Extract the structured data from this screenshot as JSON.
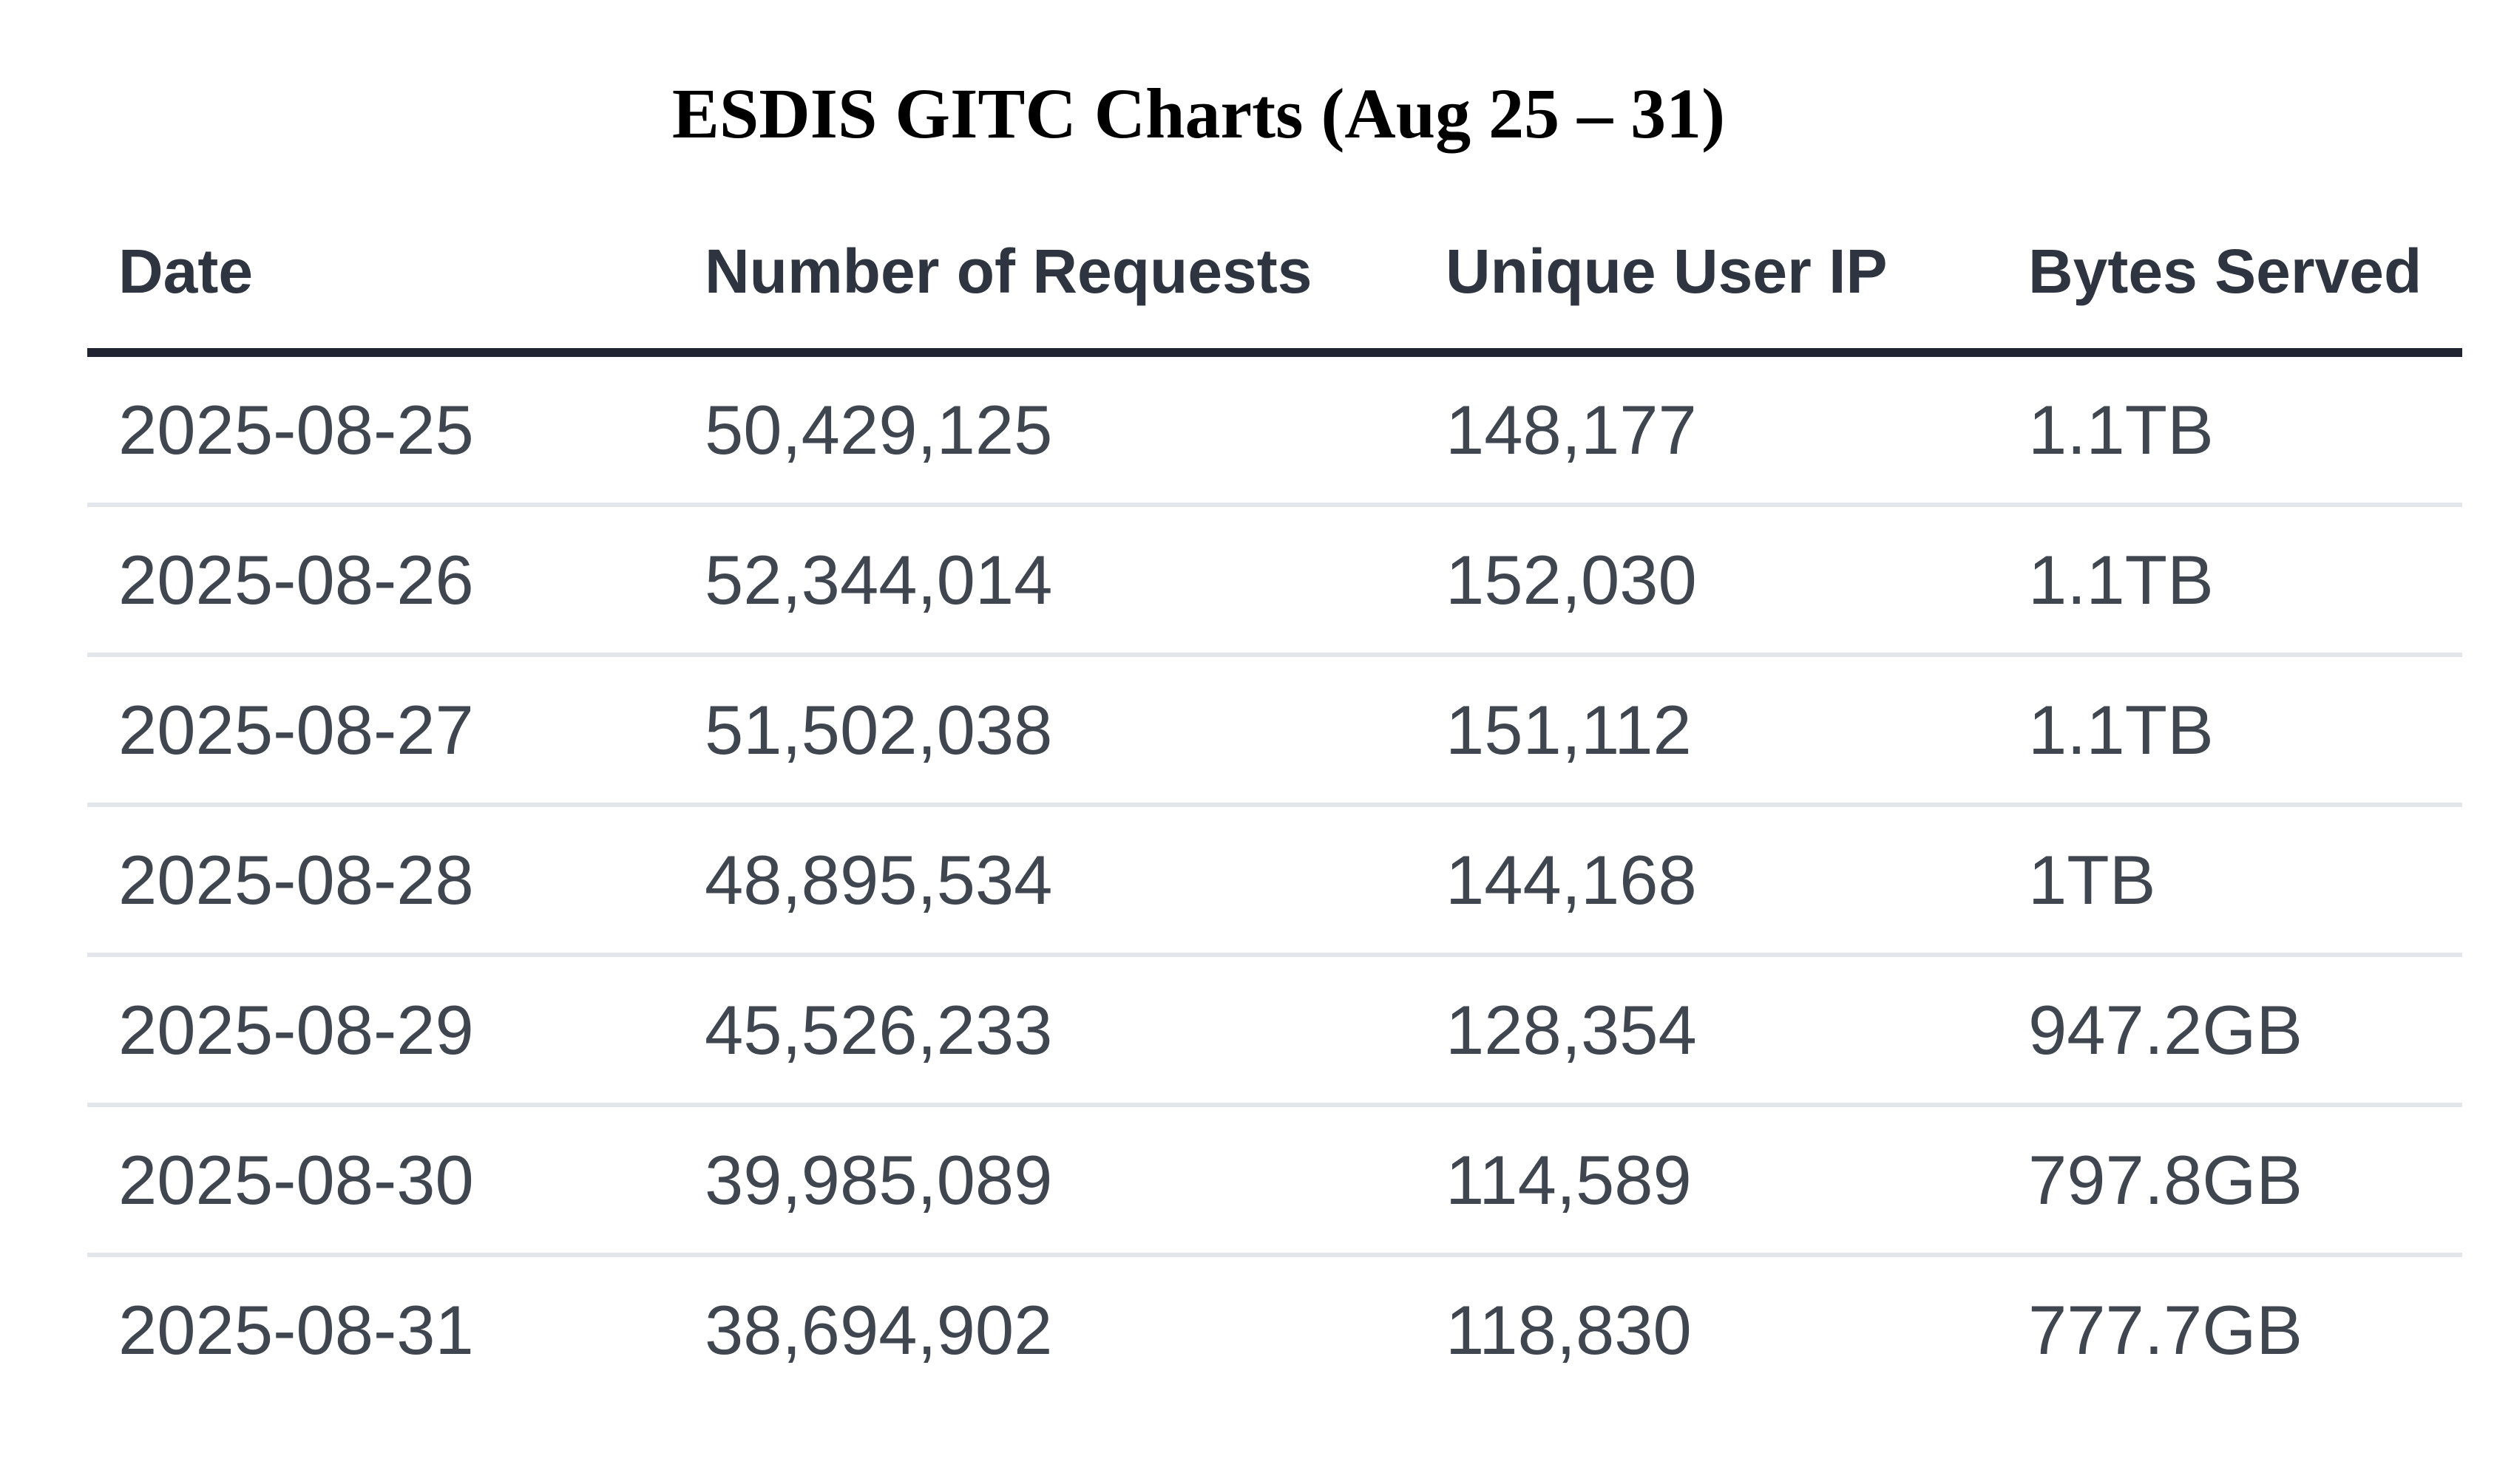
{
  "chart_data": {
    "type": "table",
    "title": "ESDIS GITC Charts (Aug 25 – 31)",
    "columns": [
      "Date",
      "Number of Requests",
      "Unique User IP",
      "Bytes Served"
    ],
    "rows": [
      {
        "date": "2025-08-25",
        "requests": "50,429,125",
        "unique_user_ip": "148,177",
        "bytes_served": "1.1TB"
      },
      {
        "date": "2025-08-26",
        "requests": "52,344,014",
        "unique_user_ip": "152,030",
        "bytes_served": "1.1TB"
      },
      {
        "date": "2025-08-27",
        "requests": "51,502,038",
        "unique_user_ip": "151,112",
        "bytes_served": "1.1TB"
      },
      {
        "date": "2025-08-28",
        "requests": "48,895,534",
        "unique_user_ip": "144,168",
        "bytes_served": "1TB"
      },
      {
        "date": "2025-08-29",
        "requests": "45,526,233",
        "unique_user_ip": "128,354",
        "bytes_served": "947.2GB"
      },
      {
        "date": "2025-08-30",
        "requests": "39,985,089",
        "unique_user_ip": "114,589",
        "bytes_served": "797.8GB"
      },
      {
        "date": "2025-08-31",
        "requests": "38,694,902",
        "unique_user_ip": "118,830",
        "bytes_served": "777.7GB"
      }
    ],
    "numeric": {
      "requests": [
        50429125,
        52344014,
        51502038,
        48895534,
        45526233,
        39985089,
        38694902
      ],
      "unique_user_ip": [
        148177,
        152030,
        151112,
        144168,
        128354,
        114589,
        118830
      ],
      "bytes_served_labels": [
        "1.1TB",
        "1.1TB",
        "1.1TB",
        "1TB",
        "947.2GB",
        "797.8GB",
        "777.7GB"
      ]
    },
    "layout": {
      "grid": "horizontal row separators only",
      "header_underline": true
    }
  },
  "theme": {
    "background": "#ffffff",
    "title_color": "#000000",
    "header_text_color": "#2f3540",
    "body_text_color": "#3f4650",
    "header_border_color": "#1f2430",
    "row_divider_color": "#e3e6eb"
  }
}
